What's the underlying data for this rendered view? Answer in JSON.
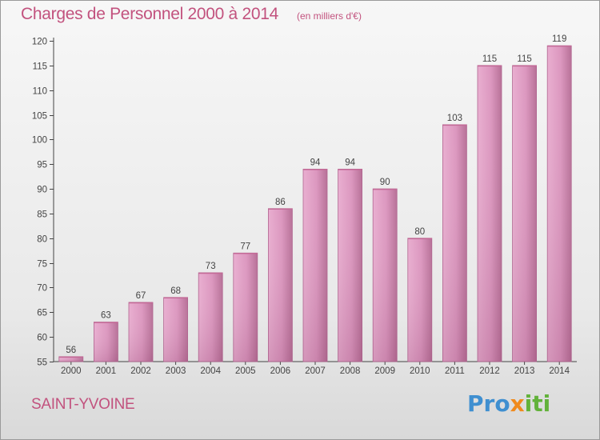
{
  "header": {
    "title": "Charges de Personnel 2000 à 2014",
    "subtitle": "(en milliers d'€)"
  },
  "footer": {
    "location": "SAINT-YVOINE",
    "logo_text": "Proxiti",
    "logo_letters": [
      {
        "char": "P",
        "color": "#3f8fd0"
      },
      {
        "char": "r",
        "color": "#3f8fd0"
      },
      {
        "char": "o",
        "color": "#3f8fd0"
      },
      {
        "char": "x",
        "color": "#f08a1c"
      },
      {
        "char": "i",
        "color": "#62b23a"
      },
      {
        "char": "t",
        "color": "#62b23a"
      },
      {
        "char": "i",
        "color": "#62b23a"
      }
    ]
  },
  "colors": {
    "bar_light": "#e8a9cb",
    "bar_dark": "#b46e95",
    "bar_top": "#c56a98",
    "axis": "#444444",
    "accent": "#c2527e"
  },
  "chart_data": {
    "type": "bar",
    "title": "Charges de Personnel 2000 à 2014",
    "subtitle": "(en milliers d'€)",
    "xlabel": "",
    "ylabel": "",
    "categories": [
      "2000",
      "2001",
      "2002",
      "2003",
      "2004",
      "2005",
      "2006",
      "2007",
      "2008",
      "2009",
      "2010",
      "2011",
      "2012",
      "2013",
      "2014"
    ],
    "values": [
      56,
      63,
      67,
      68,
      73,
      77,
      86,
      94,
      94,
      90,
      80,
      103,
      115,
      115,
      119
    ],
    "ylim": [
      55,
      120
    ],
    "yticks": [
      55,
      60,
      65,
      70,
      75,
      80,
      85,
      90,
      95,
      100,
      105,
      110,
      115,
      120
    ],
    "grid": false,
    "legend": "none"
  }
}
